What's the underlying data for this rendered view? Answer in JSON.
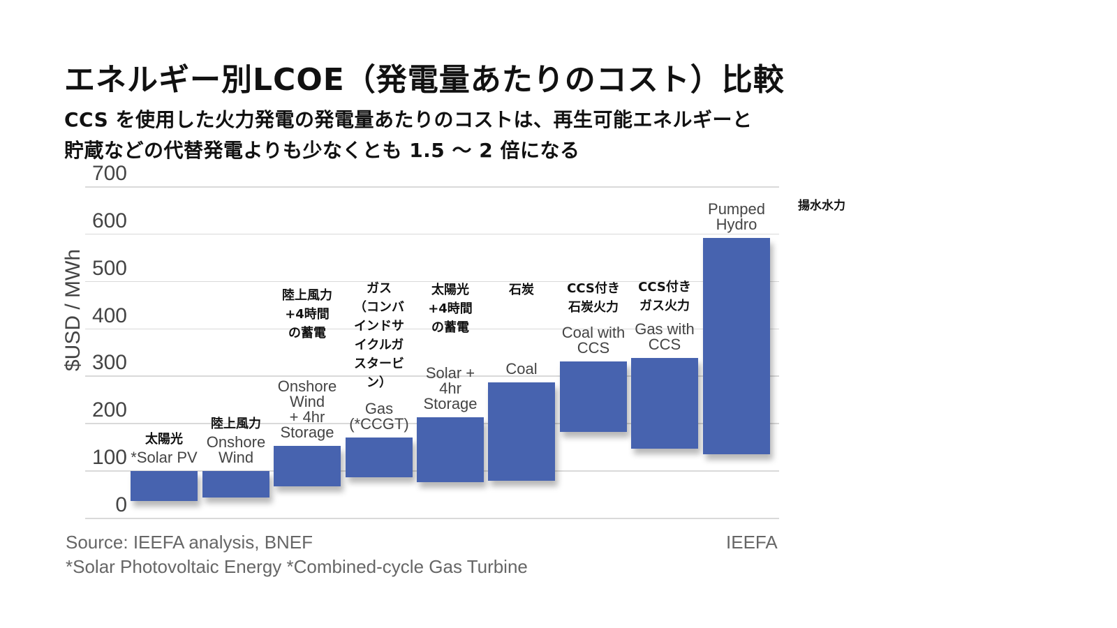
{
  "title": "エネルギー別LCOE（発電量あたりのコスト）比較",
  "subtitle": {
    "line1": "CCS を使用した火力発電の発電量あたりのコストは、再生可能エネルギーと",
    "line2": "貯蔵などの代替発電よりも少なくとも 1.5 ～ 2 倍になる"
  },
  "colors": {
    "bar": "#4763AF",
    "grid": "#D9D9D9",
    "axis_text": "#444444"
  },
  "footer": {
    "source": "Source: IEEFA analysis, BNEF",
    "footnote": "*Solar Photovoltaic Energy   *Combined-cycle Gas Turbine",
    "brand": "IEEFA"
  },
  "chart_data": {
    "type": "bar",
    "subtype": "floating range bar (min–max)",
    "title": "エネルギー別LCOE（発電量あたりのコスト）比較",
    "xlabel": "",
    "ylabel": "$USD  / MWh",
    "ylim": [
      0,
      700
    ],
    "yticks": [
      0,
      100,
      200,
      300,
      400,
      500,
      600,
      700
    ],
    "grid": true,
    "legend": null,
    "categories": [
      "*Solar PV",
      "Onshore Wind",
      "Onshore Wind + 4hr Storage",
      "Gas (*CCGT)",
      "Solar + 4hr Storage",
      "Coal",
      "Coal with CCS",
      "Gas with CCS",
      "Pumped Hydro"
    ],
    "categories_ja": [
      "太陽光",
      "陸上風力",
      "陸上風力 +4時間 の蓄電",
      "ガス（コンバインドサイクルガスタービン）",
      "太陽光 +4時間 の蓄電",
      "石炭",
      "CCS付き 石炭火力",
      "CCS付き ガス火力",
      "揚水水力"
    ],
    "series": [
      {
        "name": "low",
        "values": [
          37,
          44,
          68,
          87,
          77,
          80,
          183,
          148,
          136
        ]
      },
      {
        "name": "high",
        "values": [
          100,
          100,
          153,
          171,
          214,
          288,
          332,
          339,
          592
        ]
      }
    ]
  },
  "bars": [
    {
      "en": [
        "*Solar PV"
      ],
      "ja": [
        "太陽光"
      ]
    },
    {
      "en": [
        "Onshore",
        "Wind"
      ],
      "ja": [
        "陸上風力"
      ]
    },
    {
      "en": [
        "Onshore",
        "Wind",
        "+ 4hr",
        "Storage"
      ],
      "ja": [
        "陸上風力",
        "+4時間",
        "の蓄電"
      ]
    },
    {
      "en": [
        "Gas",
        "(*CCGT)"
      ],
      "ja": [
        "ガス",
        "（コンバ",
        "インドサ",
        "イクルガ",
        "スタービ",
        "ン）"
      ]
    },
    {
      "en": [
        "Solar +",
        "4hr",
        "Storage"
      ],
      "ja": [
        "太陽光",
        "+4時間",
        "の蓄電"
      ]
    },
    {
      "en": [
        "Coal"
      ],
      "ja": [
        "石炭"
      ]
    },
    {
      "en": [
        "Coal with",
        "CCS"
      ],
      "ja": [
        "CCS付き",
        "石炭火力"
      ]
    },
    {
      "en": [
        "Gas with",
        "CCS"
      ],
      "ja": [
        "CCS付き",
        "ガス火力"
      ]
    },
    {
      "en": [
        "Pumped",
        "Hydro"
      ],
      "ja": [
        "揚水水力"
      ]
    }
  ]
}
